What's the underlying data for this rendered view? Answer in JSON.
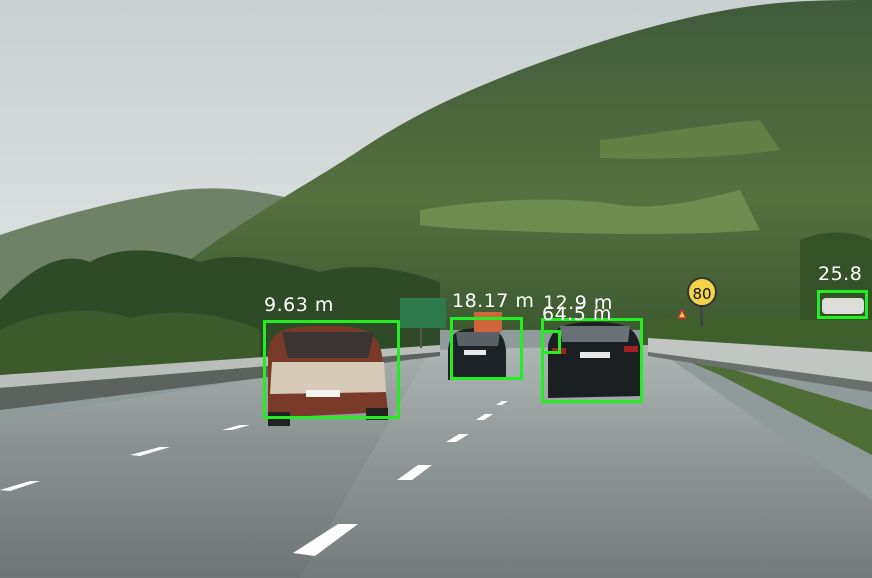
{
  "image": {
    "description_free": true,
    "box_color": "#22ee22",
    "label_color": "#ffffff",
    "sign_speed_limit": "80"
  },
  "detections": [
    {
      "id": "car-1",
      "label": "9.63 m"
    },
    {
      "id": "car-2",
      "label": "18.17 m"
    },
    {
      "id": "car-3",
      "label": "12.9 m"
    },
    {
      "id": "car-4",
      "label": "64.5 m"
    },
    {
      "id": "car-5",
      "label": "25.8"
    }
  ]
}
